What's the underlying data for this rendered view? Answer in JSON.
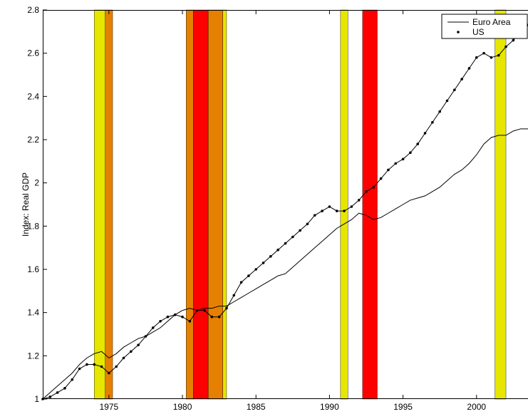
{
  "chart_data": {
    "type": "line",
    "title": "",
    "xlabel": "",
    "ylabel": "Index: Real GDP",
    "xlim": [
      1970.5,
      2003.5
    ],
    "ylim": [
      1,
      2.8
    ],
    "xticks": [
      1975,
      1980,
      1985,
      1990,
      1995,
      2000
    ],
    "yticks": [
      1,
      1.2,
      1.4,
      1.6,
      1.8,
      2,
      2.2,
      2.4,
      2.6,
      2.8
    ],
    "grid": false,
    "legend": {
      "placement": "top-right",
      "entries": [
        "Euro Area",
        "US"
      ]
    },
    "shaded_periods": [
      {
        "start": 1974.0,
        "end": 1974.75,
        "color": "#e6e600"
      },
      {
        "start": 1974.75,
        "end": 1975.25,
        "color": "#e68000"
      },
      {
        "start": 1980.25,
        "end": 1980.75,
        "color": "#e68000"
      },
      {
        "start": 1980.75,
        "end": 1981.75,
        "color": "#ff0000"
      },
      {
        "start": 1981.75,
        "end": 1982.75,
        "color": "#e68000"
      },
      {
        "start": 1982.75,
        "end": 1983.0,
        "color": "#e6e600"
      },
      {
        "start": 1990.75,
        "end": 1991.25,
        "color": "#e6e600"
      },
      {
        "start": 1992.25,
        "end": 1993.25,
        "color": "#ff0000"
      },
      {
        "start": 2001.25,
        "end": 2002.0,
        "color": "#e6e600"
      }
    ],
    "series": [
      {
        "name": "Euro Area",
        "marker": "none",
        "color": "#000000",
        "x": [
          1970.5,
          1971.0,
          1971.5,
          1972.0,
          1972.5,
          1973.0,
          1973.5,
          1974.0,
          1974.5,
          1975.0,
          1975.5,
          1976.0,
          1976.5,
          1977.0,
          1977.5,
          1978.0,
          1978.5,
          1979.0,
          1979.5,
          1980.0,
          1980.5,
          1981.0,
          1981.5,
          1982.0,
          1982.5,
          1983.0,
          1983.5,
          1984.0,
          1984.5,
          1985.0,
          1985.5,
          1986.0,
          1986.5,
          1987.0,
          1987.5,
          1988.0,
          1988.5,
          1989.0,
          1989.5,
          1990.0,
          1990.5,
          1991.0,
          1991.5,
          1992.0,
          1992.5,
          1993.0,
          1993.5,
          1994.0,
          1994.5,
          1995.0,
          1995.5,
          1996.0,
          1996.5,
          1997.0,
          1997.5,
          1998.0,
          1998.5,
          1999.0,
          1999.5,
          2000.0,
          2000.5,
          2001.0,
          2001.5,
          2002.0,
          2002.5,
          2003.0,
          2003.5
        ],
        "y": [
          1.0,
          1.03,
          1.06,
          1.09,
          1.12,
          1.16,
          1.19,
          1.21,
          1.22,
          1.19,
          1.21,
          1.24,
          1.26,
          1.28,
          1.29,
          1.31,
          1.33,
          1.36,
          1.39,
          1.41,
          1.42,
          1.41,
          1.42,
          1.42,
          1.43,
          1.43,
          1.45,
          1.47,
          1.49,
          1.51,
          1.53,
          1.55,
          1.57,
          1.58,
          1.61,
          1.64,
          1.67,
          1.7,
          1.73,
          1.76,
          1.79,
          1.81,
          1.83,
          1.86,
          1.85,
          1.83,
          1.84,
          1.86,
          1.88,
          1.9,
          1.92,
          1.93,
          1.94,
          1.96,
          1.98,
          2.01,
          2.04,
          2.06,
          2.09,
          2.13,
          2.18,
          2.21,
          2.22,
          2.22,
          2.24,
          2.25,
          2.25
        ]
      },
      {
        "name": "US",
        "marker": "dot",
        "color": "#000000",
        "x": [
          1970.5,
          1971.0,
          1971.5,
          1972.0,
          1972.5,
          1973.0,
          1973.5,
          1974.0,
          1974.5,
          1975.0,
          1975.5,
          1976.0,
          1976.5,
          1977.0,
          1977.5,
          1978.0,
          1978.5,
          1979.0,
          1979.5,
          1980.0,
          1980.5,
          1981.0,
          1981.5,
          1982.0,
          1982.5,
          1983.0,
          1983.5,
          1984.0,
          1984.5,
          1985.0,
          1985.5,
          1986.0,
          1986.5,
          1987.0,
          1987.5,
          1988.0,
          1988.5,
          1989.0,
          1989.5,
          1990.0,
          1990.5,
          1991.0,
          1991.5,
          1992.0,
          1992.5,
          1993.0,
          1993.5,
          1994.0,
          1994.5,
          1995.0,
          1995.5,
          1996.0,
          1996.5,
          1997.0,
          1997.5,
          1998.0,
          1998.5,
          1999.0,
          1999.5,
          2000.0,
          2000.5,
          2001.0,
          2001.5,
          2002.0,
          2002.5,
          2003.0,
          2003.5
        ],
        "y": [
          1.0,
          1.01,
          1.03,
          1.05,
          1.09,
          1.14,
          1.16,
          1.16,
          1.15,
          1.12,
          1.15,
          1.19,
          1.22,
          1.25,
          1.29,
          1.33,
          1.36,
          1.38,
          1.39,
          1.38,
          1.36,
          1.41,
          1.41,
          1.38,
          1.38,
          1.42,
          1.48,
          1.54,
          1.57,
          1.6,
          1.63,
          1.66,
          1.69,
          1.72,
          1.75,
          1.78,
          1.81,
          1.85,
          1.87,
          1.89,
          1.87,
          1.87,
          1.89,
          1.92,
          1.96,
          1.98,
          2.02,
          2.06,
          2.09,
          2.11,
          2.14,
          2.18,
          2.23,
          2.28,
          2.33,
          2.38,
          2.43,
          2.48,
          2.53,
          2.58,
          2.6,
          2.58,
          2.59,
          2.63,
          2.66,
          2.7,
          2.73
        ]
      }
    ]
  }
}
